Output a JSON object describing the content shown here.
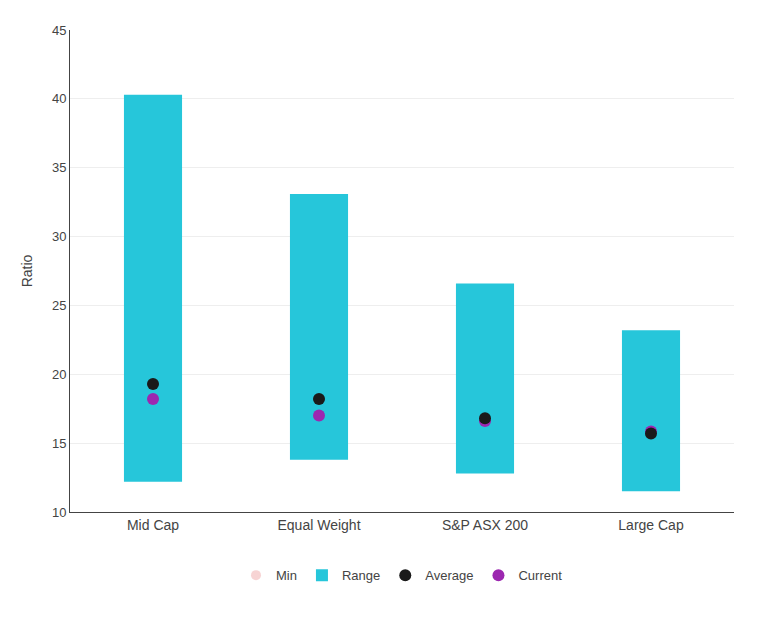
{
  "chart_data": {
    "type": "range_bar",
    "categories": [
      "Mid Cap",
      "Equal Weight",
      "S&P ASX 200",
      "Large Cap"
    ],
    "ylabel": "Ratio",
    "ylim": [
      10,
      45
    ],
    "yticks": [
      10,
      15,
      20,
      25,
      30,
      35,
      40,
      45
    ],
    "grid": true,
    "legend": "bottom",
    "series": [
      {
        "name": "Min",
        "type": "scatter",
        "marker": "none",
        "values": [
          12.2,
          13.8,
          12.8,
          11.5
        ]
      },
      {
        "name": "Range",
        "type": "bar",
        "color": "#26C6DA",
        "min": [
          12.2,
          13.8,
          12.8,
          11.5
        ],
        "max": [
          40.3,
          33.1,
          26.6,
          23.2
        ]
      },
      {
        "name": "Average",
        "type": "scatter",
        "marker": "circle",
        "color": "#1a1a1a",
        "values": [
          19.3,
          18.2,
          16.8,
          15.7
        ]
      },
      {
        "name": "Current",
        "type": "scatter",
        "marker": "circle",
        "color": "#9C27B0",
        "values": [
          18.2,
          17.0,
          16.6,
          15.85
        ]
      }
    ]
  }
}
